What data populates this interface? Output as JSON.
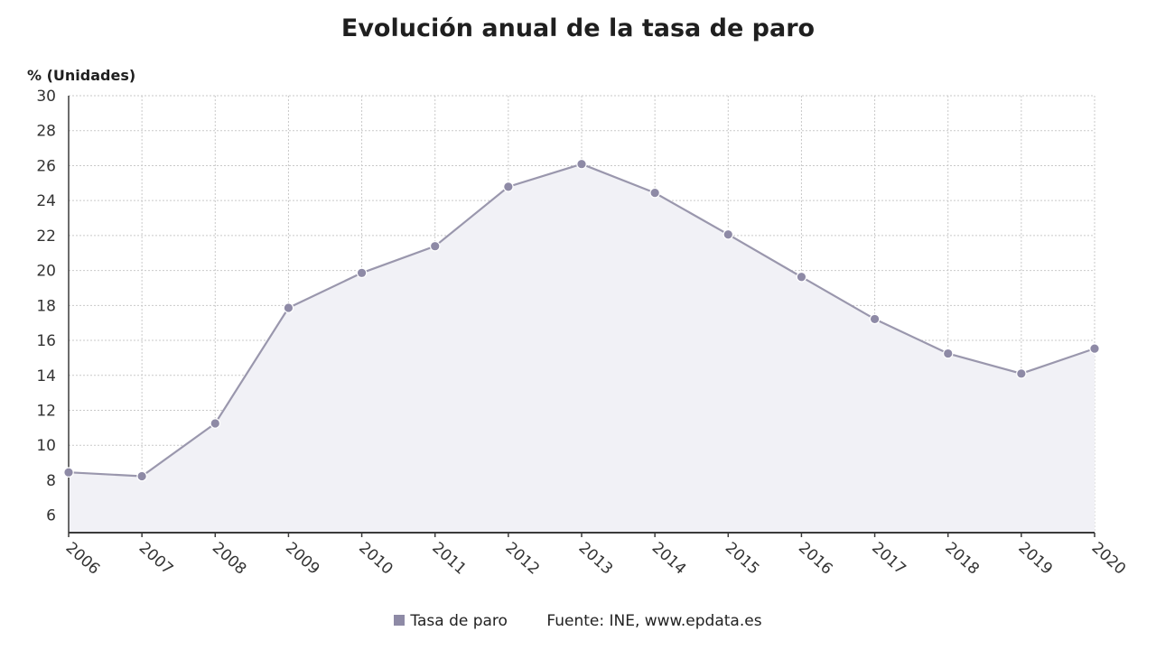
{
  "title": "Evolución anual de la tasa de paro",
  "chart_data": {
    "type": "area",
    "title": "Evolución anual de la tasa de paro",
    "ylabel": "% (Unidades)",
    "xlabel": "",
    "categories": [
      "2006",
      "2007",
      "2008",
      "2009",
      "2010",
      "2011",
      "2012",
      "2013",
      "2014",
      "2015",
      "2016",
      "2017",
      "2018",
      "2019",
      "2020"
    ],
    "series": [
      {
        "name": "Tasa de paro",
        "values": [
          8.45,
          8.23,
          11.25,
          17.86,
          19.86,
          21.39,
          24.79,
          26.09,
          24.44,
          22.06,
          19.63,
          17.22,
          15.25,
          14.1,
          15.53
        ]
      }
    ],
    "ylim": [
      5,
      30
    ],
    "yticks": [
      6,
      8,
      10,
      12,
      14,
      16,
      18,
      20,
      22,
      24,
      26,
      28,
      30
    ],
    "grid": true,
    "legend_position": "bottom"
  },
  "colors": {
    "line": "#9a97ad",
    "marker": "#8e8aa6",
    "area": "#f1f1f6",
    "grid": "#c9c9c9",
    "axis": "#3a3a3a"
  },
  "legend": {
    "series_label": "Tasa de paro",
    "source": "Fuente: INE, www.epdata.es"
  }
}
